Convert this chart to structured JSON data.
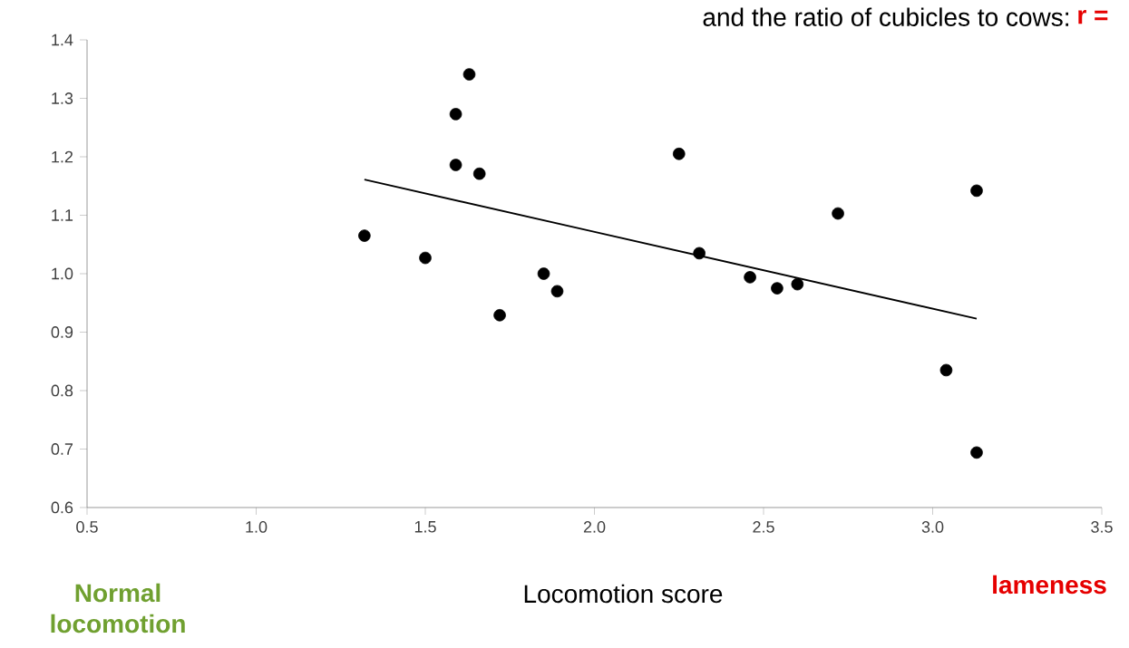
{
  "chart_data": {
    "type": "scatter",
    "title": "and the ratio of cubicles to cows:",
    "xlabel": "Locomotion score",
    "annotations": [
      "r =",
      "Normal locomotion",
      "lameness"
    ],
    "xlim": [
      0.5,
      3.5
    ],
    "ylim": [
      0.6,
      1.4
    ],
    "xticks": [
      {
        "value": 0.5,
        "label": "0.5"
      },
      {
        "value": 1.0,
        "label": "1.0"
      },
      {
        "value": 1.5,
        "label": "1.5"
      },
      {
        "value": 2.0,
        "label": "2.0"
      },
      {
        "value": 2.5,
        "label": "2.5"
      },
      {
        "value": 3.0,
        "label": "3.0"
      },
      {
        "value": 3.5,
        "label": "3.5"
      }
    ],
    "yticks": [
      {
        "value": 0.6,
        "label": "0.6"
      },
      {
        "value": 0.7,
        "label": "0.7"
      },
      {
        "value": 0.8,
        "label": "0.8"
      },
      {
        "value": 0.9,
        "label": "0.9"
      },
      {
        "value": 1.0,
        "label": "1.0"
      },
      {
        "value": 1.1,
        "label": "1.1"
      },
      {
        "value": 1.2,
        "label": "1.2"
      },
      {
        "value": 1.3,
        "label": "1.3"
      },
      {
        "value": 1.4,
        "label": "1.4"
      }
    ],
    "series": [
      {
        "color": "#000000",
        "x": [
          1.32,
          1.5,
          1.59,
          1.59,
          1.63,
          1.66,
          1.72,
          1.85,
          1.89,
          2.25,
          2.31,
          2.46,
          2.54,
          2.6,
          2.72,
          3.13,
          3.04,
          3.13
        ],
        "values": [
          1.065,
          1.027,
          1.273,
          1.186,
          1.341,
          1.171,
          0.929,
          1.0,
          0.97,
          1.205,
          1.035,
          0.994,
          0.975,
          0.982,
          1.103,
          0.694,
          0.835,
          1.142
        ]
      },
      {
        "type": "line",
        "color": "#000000",
        "x": [
          1.32,
          3.13
        ],
        "values": [
          1.161,
          0.923
        ]
      }
    ]
  }
}
